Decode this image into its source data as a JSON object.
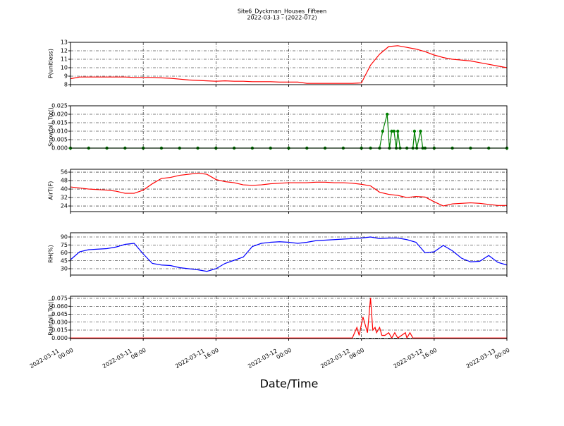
{
  "title": "Site6_Dyckman_Houses_Fifteen",
  "subtitle": "2022-03-13 - (2022-072)",
  "xlabel": "Date/Time",
  "chart_data": [
    {
      "type": "line",
      "ylabel": "P(unitless)",
      "color": "#ff0000",
      "grid": true,
      "xlim": [
        "2022-03-11 00:00",
        "2022-03-13 00:00"
      ],
      "xticks": [
        "2022-03-11 00:00",
        "2022-03-11 08:00",
        "2022-03-11 16:00",
        "2022-03-12 00:00",
        "2022-03-12 08:00",
        "2022-03-12 16:00",
        "2022-03-13 00:00"
      ],
      "ylim": [
        8,
        13
      ],
      "yticks": [
        8,
        9,
        10,
        11,
        12,
        13
      ],
      "x": [
        "2022-03-11 00:00",
        "2022-03-11 01:00",
        "2022-03-11 02:00",
        "2022-03-11 03:00",
        "2022-03-11 04:00",
        "2022-03-11 05:00",
        "2022-03-11 06:00",
        "2022-03-11 07:00",
        "2022-03-11 08:00",
        "2022-03-11 09:00",
        "2022-03-11 10:00",
        "2022-03-11 11:00",
        "2022-03-11 12:00",
        "2022-03-11 13:00",
        "2022-03-11 14:00",
        "2022-03-11 15:00",
        "2022-03-11 16:00",
        "2022-03-11 17:00",
        "2022-03-11 18:00",
        "2022-03-11 19:00",
        "2022-03-11 20:00",
        "2022-03-11 21:00",
        "2022-03-11 22:00",
        "2022-03-11 23:00",
        "2022-03-12 00:00",
        "2022-03-12 01:00",
        "2022-03-12 02:00",
        "2022-03-12 03:00",
        "2022-03-12 04:00",
        "2022-03-12 05:00",
        "2022-03-12 06:00",
        "2022-03-12 07:00",
        "2022-03-12 08:00",
        "2022-03-12 09:00",
        "2022-03-12 10:00",
        "2022-03-12 11:00",
        "2022-03-12 12:00",
        "2022-03-12 13:00",
        "2022-03-12 14:00",
        "2022-03-12 15:00",
        "2022-03-12 16:00",
        "2022-03-12 17:00",
        "2022-03-12 18:00",
        "2022-03-12 19:00",
        "2022-03-12 20:00",
        "2022-03-12 21:00",
        "2022-03-12 22:00",
        "2022-03-12 23:00",
        "2022-03-13 00:00"
      ],
      "values": [
        8.7,
        8.9,
        8.9,
        8.9,
        8.9,
        8.9,
        8.9,
        8.85,
        8.85,
        8.85,
        8.8,
        8.75,
        8.65,
        8.55,
        8.5,
        8.45,
        8.4,
        8.45,
        8.4,
        8.4,
        8.35,
        8.35,
        8.35,
        8.3,
        8.3,
        8.3,
        8.15,
        8.15,
        8.15,
        8.15,
        8.15,
        8.15,
        8.2,
        10.3,
        11.6,
        12.5,
        12.6,
        12.4,
        12.2,
        11.9,
        11.5,
        11.2,
        11.0,
        10.9,
        10.8,
        10.6,
        10.4,
        10.2,
        10.0
      ]
    },
    {
      "type": "line",
      "ylabel": "Snowfall_Tot()",
      "color": "#008000",
      "grid": true,
      "markers": true,
      "xlim": [
        "2022-03-11 00:00",
        "2022-03-13 00:00"
      ],
      "xticks": [
        "2022-03-11 00:00",
        "2022-03-11 08:00",
        "2022-03-11 16:00",
        "2022-03-12 00:00",
        "2022-03-12 08:00",
        "2022-03-12 16:00",
        "2022-03-13 00:00"
      ],
      "ylim": [
        0,
        0.025
      ],
      "yticks": [
        {
          "value": 0,
          "label": "0.000"
        },
        {
          "value": 0.005,
          "label": "0.005"
        },
        {
          "value": 0.01,
          "label": "0.010"
        },
        {
          "value": 0.015,
          "label": "0.015"
        },
        {
          "value": 0.02,
          "label": "0.020"
        },
        {
          "value": 0.025,
          "label": "0.025"
        }
      ],
      "x": [
        "2022-03-11 00:00",
        "2022-03-11 02:00",
        "2022-03-11 04:00",
        "2022-03-11 06:00",
        "2022-03-11 08:00",
        "2022-03-11 10:00",
        "2022-03-11 12:00",
        "2022-03-11 14:00",
        "2022-03-11 16:00",
        "2022-03-11 18:00",
        "2022-03-11 20:00",
        "2022-03-11 22:00",
        "2022-03-12 00:00",
        "2022-03-12 02:00",
        "2022-03-12 04:00",
        "2022-03-12 06:00",
        "2022-03-12 08:00",
        "2022-03-12 09:00",
        "2022-03-12 10:00",
        "2022-03-12 10:20",
        "2022-03-12 10:50",
        "2022-03-12 11:05",
        "2022-03-12 11:20",
        "2022-03-12 11:35",
        "2022-03-12 11:50",
        "2022-03-12 12:00",
        "2022-03-12 12:15",
        "2022-03-12 13:00",
        "2022-03-12 13:40",
        "2022-03-12 13:50",
        "2022-03-12 14:05",
        "2022-03-12 14:30",
        "2022-03-12 14:45",
        "2022-03-12 15:00",
        "2022-03-12 16:00",
        "2022-03-12 18:00",
        "2022-03-12 20:00",
        "2022-03-12 22:00",
        "2022-03-13 00:00"
      ],
      "values": [
        0,
        0,
        0,
        0,
        0,
        0,
        0,
        0,
        0,
        0,
        0,
        0,
        0,
        0,
        0,
        0,
        0,
        0,
        0,
        0.01,
        0.02,
        0,
        0.01,
        0.01,
        0,
        0.01,
        0,
        0,
        0,
        0.01,
        0,
        0.01,
        0,
        0,
        0,
        0,
        0,
        0,
        0
      ]
    },
    {
      "type": "line",
      "ylabel": "AirT(F)",
      "color": "#ff0000",
      "grid": true,
      "xlim": [
        "2022-03-11 00:00",
        "2022-03-13 00:00"
      ],
      "xticks": [
        "2022-03-11 00:00",
        "2022-03-11 08:00",
        "2022-03-11 16:00",
        "2022-03-12 00:00",
        "2022-03-12 08:00",
        "2022-03-12 16:00",
        "2022-03-13 00:00"
      ],
      "ylim": [
        18.7,
        58.7
      ],
      "yticks": [
        24,
        32,
        40,
        48,
        56
      ],
      "x": [
        "2022-03-11 00:00",
        "2022-03-11 01:00",
        "2022-03-11 02:00",
        "2022-03-11 03:00",
        "2022-03-11 04:00",
        "2022-03-11 05:00",
        "2022-03-11 06:00",
        "2022-03-11 07:00",
        "2022-03-11 08:00",
        "2022-03-11 09:00",
        "2022-03-11 10:00",
        "2022-03-11 11:00",
        "2022-03-11 12:00",
        "2022-03-11 13:00",
        "2022-03-11 14:00",
        "2022-03-11 15:00",
        "2022-03-11 16:00",
        "2022-03-11 17:00",
        "2022-03-11 18:00",
        "2022-03-11 19:00",
        "2022-03-11 20:00",
        "2022-03-11 21:00",
        "2022-03-11 22:00",
        "2022-03-11 23:00",
        "2022-03-12 00:00",
        "2022-03-12 01:00",
        "2022-03-12 02:00",
        "2022-03-12 03:00",
        "2022-03-12 04:00",
        "2022-03-12 05:00",
        "2022-03-12 06:00",
        "2022-03-12 07:00",
        "2022-03-12 08:00",
        "2022-03-12 09:00",
        "2022-03-12 10:00",
        "2022-03-12 11:00",
        "2022-03-12 12:00",
        "2022-03-12 13:00",
        "2022-03-12 14:00",
        "2022-03-12 15:00",
        "2022-03-12 16:00",
        "2022-03-12 17:00",
        "2022-03-12 18:00",
        "2022-03-12 19:00",
        "2022-03-12 20:00",
        "2022-03-12 21:00",
        "2022-03-12 22:00",
        "2022-03-12 23:00",
        "2022-03-13 00:00"
      ],
      "values": [
        42,
        41,
        40,
        39.5,
        39,
        38,
        36,
        36,
        39,
        45,
        50,
        51,
        53,
        54,
        55,
        54,
        49,
        47,
        46,
        44,
        43.5,
        44,
        45,
        45.5,
        46,
        46,
        46,
        46.5,
        46.5,
        46,
        46,
        45.5,
        44.5,
        43,
        37,
        35,
        34,
        32,
        33,
        32.5,
        28,
        24,
        26,
        26.5,
        27,
        26.5,
        25.5,
        24.5,
        24.5
      ]
    },
    {
      "type": "line",
      "ylabel": "RH(%)",
      "color": "#0000ff",
      "grid": true,
      "xlim": [
        "2022-03-11 00:00",
        "2022-03-13 00:00"
      ],
      "xticks": [
        "2022-03-11 00:00",
        "2022-03-11 08:00",
        "2022-03-11 16:00",
        "2022-03-12 00:00",
        "2022-03-12 08:00",
        "2022-03-12 16:00",
        "2022-03-13 00:00"
      ],
      "ylim": [
        18,
        98
      ],
      "yticks": [
        30,
        45,
        60,
        75,
        90
      ],
      "x": [
        "2022-03-11 00:00",
        "2022-03-11 01:00",
        "2022-03-11 02:00",
        "2022-03-11 03:00",
        "2022-03-11 04:00",
        "2022-03-11 05:00",
        "2022-03-11 06:00",
        "2022-03-11 07:00",
        "2022-03-11 08:00",
        "2022-03-11 09:00",
        "2022-03-11 10:00",
        "2022-03-11 11:00",
        "2022-03-11 12:00",
        "2022-03-11 13:00",
        "2022-03-11 14:00",
        "2022-03-11 15:00",
        "2022-03-11 16:00",
        "2022-03-11 17:00",
        "2022-03-11 18:00",
        "2022-03-11 19:00",
        "2022-03-11 20:00",
        "2022-03-11 21:00",
        "2022-03-11 22:00",
        "2022-03-11 23:00",
        "2022-03-12 00:00",
        "2022-03-12 01:00",
        "2022-03-12 02:00",
        "2022-03-12 03:00",
        "2022-03-12 04:00",
        "2022-03-12 05:00",
        "2022-03-12 06:00",
        "2022-03-12 07:00",
        "2022-03-12 08:00",
        "2022-03-12 09:00",
        "2022-03-12 10:00",
        "2022-03-12 11:00",
        "2022-03-12 12:00",
        "2022-03-12 13:00",
        "2022-03-12 14:00",
        "2022-03-12 15:00",
        "2022-03-12 16:00",
        "2022-03-12 17:00",
        "2022-03-12 18:00",
        "2022-03-12 19:00",
        "2022-03-12 20:00",
        "2022-03-12 21:00",
        "2022-03-12 22:00",
        "2022-03-12 23:00",
        "2022-03-13 00:00"
      ],
      "values": [
        47,
        62,
        66,
        67,
        68,
        71,
        76,
        78,
        58,
        40,
        37,
        36,
        32,
        30,
        28,
        25,
        30,
        40,
        46,
        52,
        72,
        78,
        80,
        81,
        80,
        78,
        80,
        83,
        84,
        85,
        86,
        87,
        88,
        90,
        87,
        88,
        88,
        85,
        80,
        60,
        62,
        74,
        64,
        50,
        43,
        44,
        55,
        42,
        37
      ]
    },
    {
      "type": "line",
      "ylabel": "Rainfall_Tot()",
      "color": "#ff0000",
      "grid": true,
      "show_xtick_labels": true,
      "xlim": [
        "2022-03-11 00:00",
        "2022-03-13 00:00"
      ],
      "xticks": [
        "2022-03-11 00:00",
        "2022-03-11 08:00",
        "2022-03-11 16:00",
        "2022-03-12 00:00",
        "2022-03-12 08:00",
        "2022-03-12 16:00",
        "2022-03-13 00:00"
      ],
      "ylim": [
        -0.001,
        0.079
      ],
      "yticks": [
        {
          "value": 0,
          "label": "0.000"
        },
        {
          "value": 0.015,
          "label": "0.015"
        },
        {
          "value": 0.03,
          "label": "0.030"
        },
        {
          "value": 0.045,
          "label": "0.045"
        },
        {
          "value": 0.06,
          "label": "0.060"
        },
        {
          "value": 0.075,
          "label": "0.075"
        }
      ],
      "x": [
        "2022-03-11 00:00",
        "2022-03-11 06:00",
        "2022-03-11 12:00",
        "2022-03-11 18:00",
        "2022-03-12 00:00",
        "2022-03-12 06:00",
        "2022-03-12 07:00",
        "2022-03-12 07:30",
        "2022-03-12 07:45",
        "2022-03-12 08:10",
        "2022-03-12 08:40",
        "2022-03-12 09:00",
        "2022-03-12 09:15",
        "2022-03-12 09:30",
        "2022-03-12 09:40",
        "2022-03-12 10:00",
        "2022-03-12 10:15",
        "2022-03-12 10:35",
        "2022-03-12 11:00",
        "2022-03-12 11:20",
        "2022-03-12 11:40",
        "2022-03-12 12:00",
        "2022-03-12 12:50",
        "2022-03-12 13:00",
        "2022-03-12 13:20",
        "2022-03-12 13:40",
        "2022-03-12 14:00",
        "2022-03-12 18:00",
        "2022-03-13 00:00"
      ],
      "values": [
        0,
        0,
        0,
        0,
        0,
        0,
        0,
        0.02,
        0.005,
        0.04,
        0.01,
        0.076,
        0.015,
        0.02,
        0.01,
        0.02,
        0.005,
        0.005,
        0.01,
        0,
        0.01,
        0,
        0.01,
        0,
        0.01,
        0,
        0,
        0,
        0
      ]
    }
  ]
}
